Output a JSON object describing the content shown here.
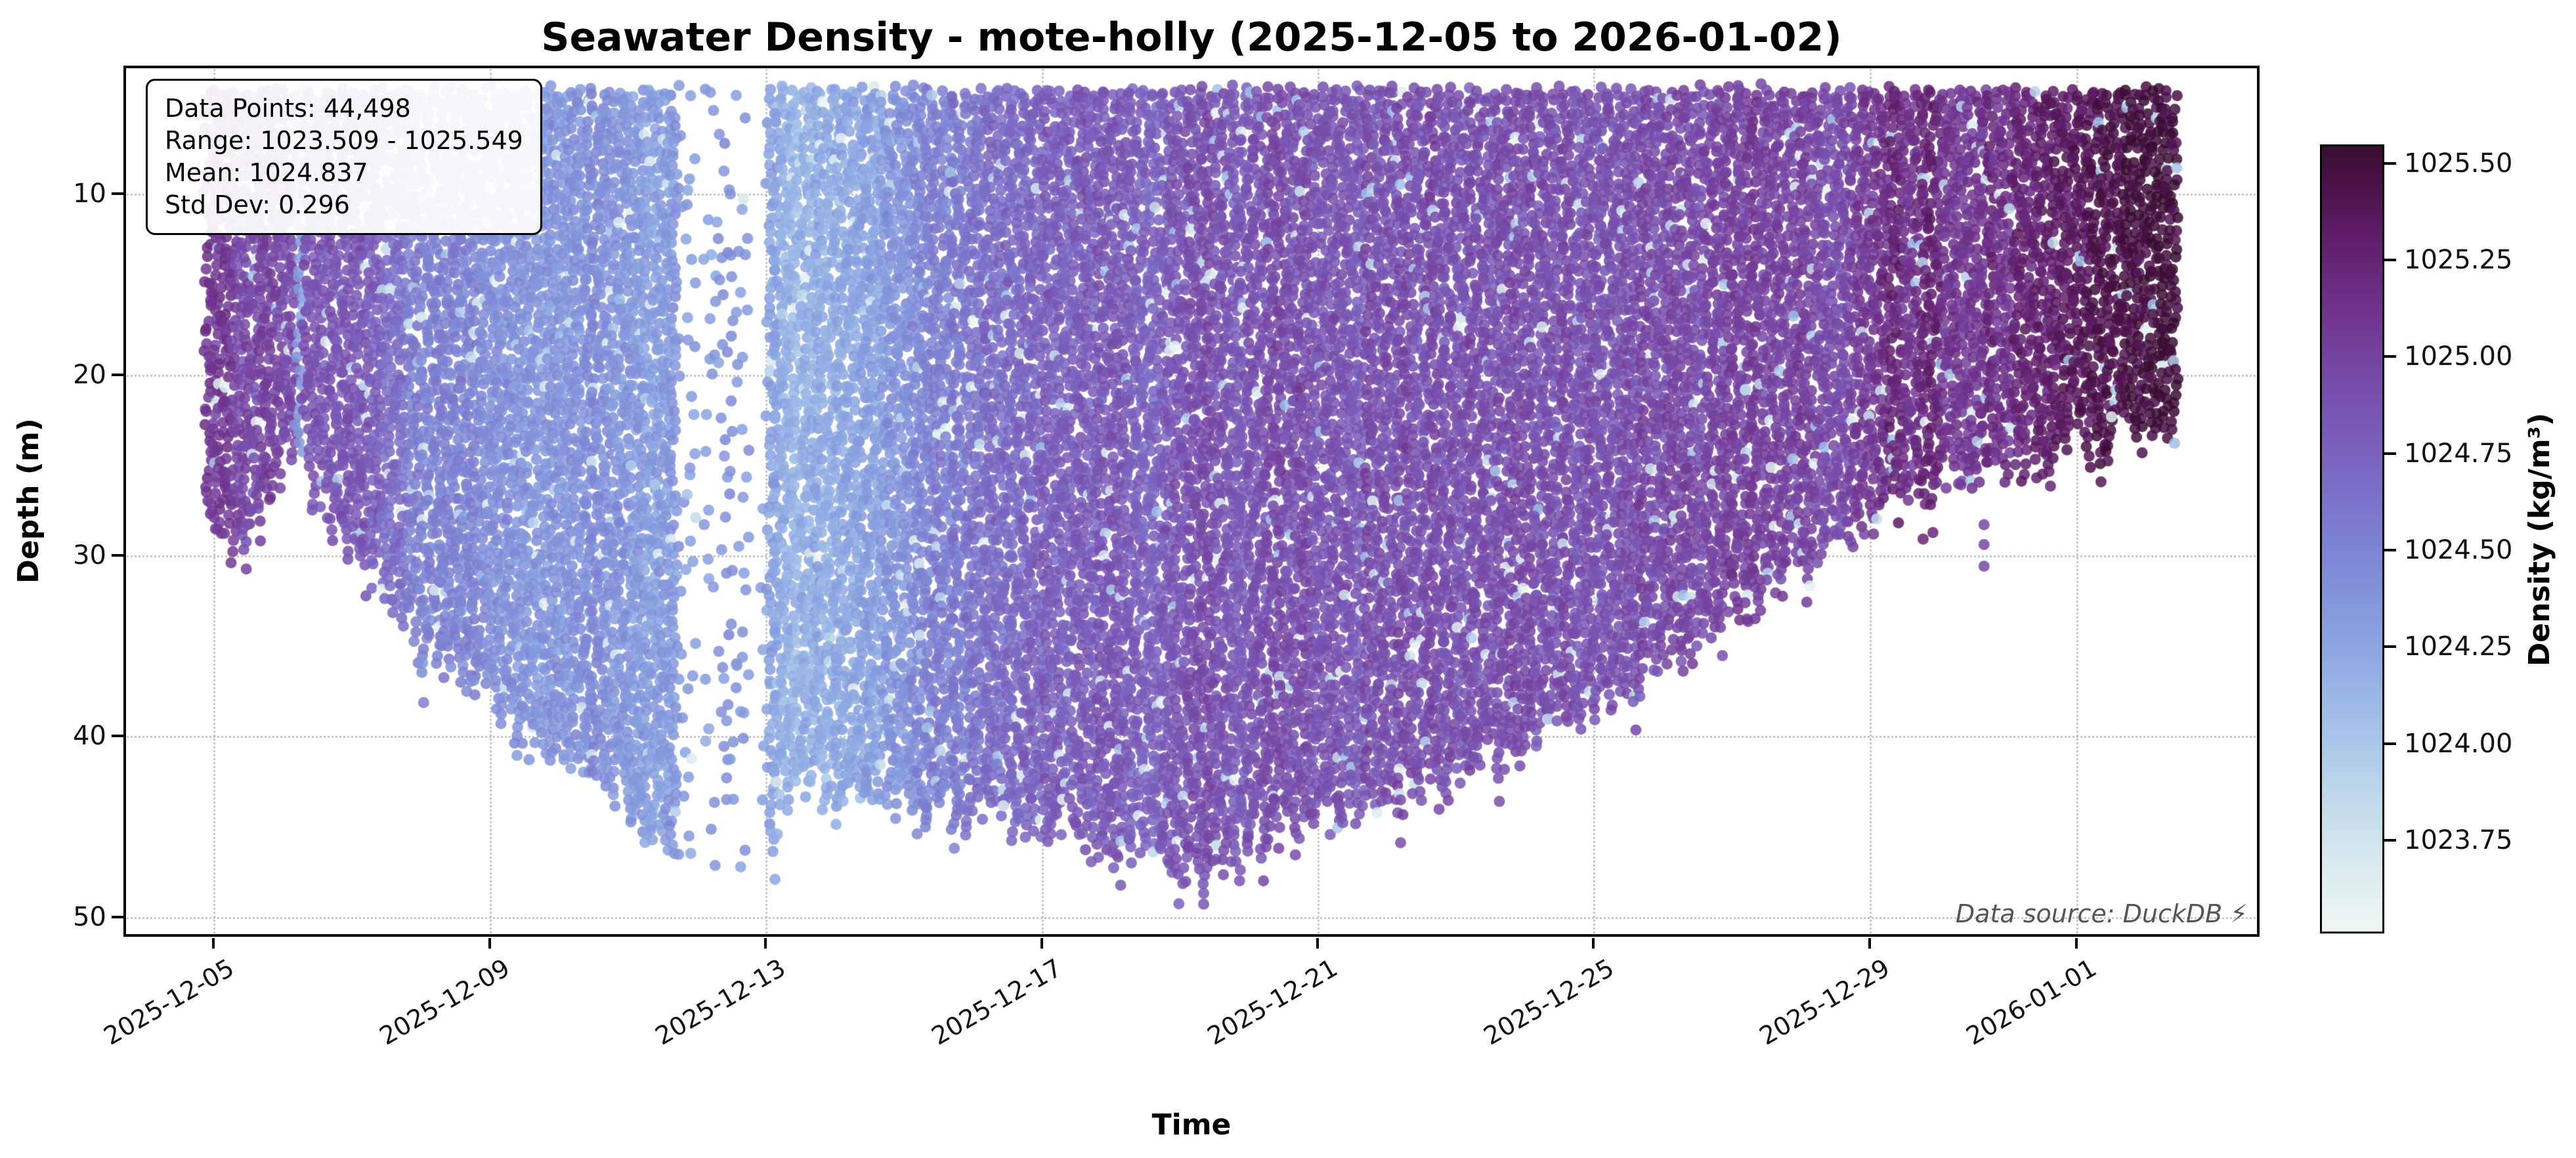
{
  "title": "Seawater Density - mote-holly (2025-12-05 to 2026-01-02)",
  "stats_box": {
    "lines": [
      "Data Points: 44,498",
      "Range: 1023.509 - 1025.549",
      "Mean: 1024.837",
      "Std Dev: 0.296"
    ]
  },
  "axes": {
    "x_label": "Time",
    "y_label": "Depth (m)",
    "x_ticks": [
      {
        "day": 0,
        "label": "2025-12-05"
      },
      {
        "day": 4,
        "label": "2025-12-09"
      },
      {
        "day": 8,
        "label": "2025-12-13"
      },
      {
        "day": 12,
        "label": "2025-12-17"
      },
      {
        "day": 16,
        "label": "2025-12-21"
      },
      {
        "day": 20,
        "label": "2025-12-25"
      },
      {
        "day": 24,
        "label": "2025-12-29"
      },
      {
        "day": 27,
        "label": "2026-01-01"
      }
    ],
    "y_ticks": [
      {
        "depth": 10,
        "label": "10"
      },
      {
        "depth": 20,
        "label": "20"
      },
      {
        "depth": 30,
        "label": "30"
      },
      {
        "depth": 40,
        "label": "40"
      },
      {
        "depth": 50,
        "label": "50"
      }
    ]
  },
  "colorbar": {
    "label": "Density (kg/m³)",
    "vmin": 1023.509,
    "vmax": 1025.549,
    "ticks": [
      {
        "value": 1025.5,
        "label": "1025.50"
      },
      {
        "value": 1025.25,
        "label": "1025.25"
      },
      {
        "value": 1025.0,
        "label": "1025.00"
      },
      {
        "value": 1024.75,
        "label": "1024.75"
      },
      {
        "value": 1024.5,
        "label": "1024.50"
      },
      {
        "value": 1024.25,
        "label": "1024.25"
      },
      {
        "value": 1024.0,
        "label": "1024.00"
      },
      {
        "value": 1023.75,
        "label": "1023.75"
      }
    ],
    "colormap": [
      {
        "t": 0.0,
        "color": "#eef7f4"
      },
      {
        "t": 0.08,
        "color": "#dcebee"
      },
      {
        "t": 0.18,
        "color": "#bcd6ea"
      },
      {
        "t": 0.28,
        "color": "#9dbde7"
      },
      {
        "t": 0.38,
        "color": "#87a1e0"
      },
      {
        "t": 0.48,
        "color": "#7d86d4"
      },
      {
        "t": 0.58,
        "color": "#7a6ac4"
      },
      {
        "t": 0.68,
        "color": "#7850ae"
      },
      {
        "t": 0.78,
        "color": "#713691"
      },
      {
        "t": 0.88,
        "color": "#601e6b"
      },
      {
        "t": 0.96,
        "color": "#471043"
      },
      {
        "t": 1.0,
        "color": "#390d31"
      }
    ]
  },
  "annotation": {
    "text": "Data source: DuckDB",
    "icon": "⚡"
  },
  "chart_data": {
    "type": "scatter",
    "title": "Seawater Density - mote-holly (2025-12-05 to 2026-01-02)",
    "xlabel": "Time",
    "ylabel": "Depth (m)",
    "color_label": "Density (kg/m³)",
    "x_unit": "days since 2025-12-05",
    "date_range": [
      "2025-12-05",
      "2026-01-02"
    ],
    "x_axis_span_days": [
      -1.31,
      29.64
    ],
    "depth_axis_range_m": [
      2.9,
      51.1
    ],
    "y_axis_inverted": true,
    "n_points": 44498,
    "density_min": 1023.509,
    "density_max": 1025.549,
    "density_mean": 1024.837,
    "density_std": 0.296,
    "top_depth_m": 4.3,
    "envelope_day_maxdepth": [
      [
        -0.1,
        27.5
      ],
      [
        0,
        28.5
      ],
      [
        0.4,
        29.5
      ],
      [
        0.7,
        28.0
      ],
      [
        1.1,
        23.5
      ],
      [
        1.4,
        25.5
      ],
      [
        2,
        30
      ],
      [
        2.5,
        32.5
      ],
      [
        3,
        34.5
      ],
      [
        3.5,
        36.5
      ],
      [
        4,
        38
      ],
      [
        4.5,
        39.5
      ],
      [
        5,
        41
      ],
      [
        5.5,
        42.5
      ],
      [
        6,
        44
      ],
      [
        6.5,
        45
      ],
      [
        7,
        46.5
      ],
      [
        7.5,
        48
      ],
      [
        8,
        47
      ],
      [
        8.3,
        43
      ],
      [
        9,
        43.5
      ],
      [
        10,
        44
      ],
      [
        11,
        44.5
      ],
      [
        12,
        45.5
      ],
      [
        13,
        46
      ],
      [
        14,
        47.5
      ],
      [
        14.6,
        47
      ],
      [
        15,
        46
      ],
      [
        16,
        44.5
      ],
      [
        17,
        43.5
      ],
      [
        18,
        42.5
      ],
      [
        19,
        40.5
      ],
      [
        20,
        38.5
      ],
      [
        21,
        36.5
      ],
      [
        22,
        33.5
      ],
      [
        23,
        30.5
      ],
      [
        23.5,
        29
      ],
      [
        24,
        28
      ],
      [
        25,
        26.5
      ],
      [
        26,
        25
      ],
      [
        27,
        24
      ],
      [
        28,
        23
      ],
      [
        28.45,
        22.5
      ]
    ],
    "density_timeline_day_value": [
      [
        -0.1,
        1025.1
      ],
      [
        0,
        1025.05
      ],
      [
        0.5,
        1025.0
      ],
      [
        1,
        1024.95
      ],
      [
        1.5,
        1024.9
      ],
      [
        2,
        1024.85
      ],
      [
        2.5,
        1024.7
      ],
      [
        3,
        1024.55
      ],
      [
        3.5,
        1024.5
      ],
      [
        4,
        1024.45
      ],
      [
        4.5,
        1024.4
      ],
      [
        5,
        1024.38
      ],
      [
        5.5,
        1024.42
      ],
      [
        6,
        1024.36
      ],
      [
        6.5,
        1024.32
      ],
      [
        7,
        1024.36
      ],
      [
        7.5,
        1024.42
      ],
      [
        8,
        1024.28
      ],
      [
        8.5,
        1024.2
      ],
      [
        9,
        1024.24
      ],
      [
        9.5,
        1024.3
      ],
      [
        10,
        1024.4
      ],
      [
        10.5,
        1024.52
      ],
      [
        11,
        1024.62
      ],
      [
        11.5,
        1024.72
      ],
      [
        12,
        1024.76
      ],
      [
        12.5,
        1024.8
      ],
      [
        13,
        1024.85
      ],
      [
        13.6,
        1024.72
      ],
      [
        14,
        1024.88
      ],
      [
        14.5,
        1024.9
      ],
      [
        15,
        1024.86
      ],
      [
        15.5,
        1024.92
      ],
      [
        16,
        1024.9
      ],
      [
        16.5,
        1024.86
      ],
      [
        17,
        1024.92
      ],
      [
        18,
        1024.9
      ],
      [
        19,
        1024.95
      ],
      [
        20,
        1024.9
      ],
      [
        21,
        1024.96
      ],
      [
        22,
        1025.0
      ],
      [
        23,
        1025.0
      ],
      [
        23.5,
        1024.95
      ],
      [
        24,
        1025.05
      ],
      [
        24.35,
        1025.3
      ],
      [
        24.6,
        1025.12
      ],
      [
        24.85,
        1025.28
      ],
      [
        25.1,
        1025.08
      ],
      [
        25.5,
        1025.12
      ],
      [
        26,
        1025.2
      ],
      [
        26.5,
        1025.28
      ],
      [
        27,
        1025.35
      ],
      [
        27.5,
        1025.45
      ],
      [
        28,
        1025.5
      ],
      [
        28.45,
        1025.53
      ]
    ],
    "sparse_intervals": [
      {
        "start": 6.7,
        "end": 8.05,
        "profile_keep": 0.6,
        "point_keep": 0.42
      }
    ],
    "light_streaks": [
      {
        "day": 1.28,
        "halfwidth": 0.06,
        "density": 1024.32
      }
    ],
    "outlier_points": [
      {
        "day": 25.66,
        "depths": [
          28.3,
          29.4,
          30.6
        ],
        "density": 1024.95
      },
      {
        "day": 14.35,
        "depths": [
          48.7,
          49.3
        ],
        "density": 1024.85
      }
    ],
    "point_style": {
      "radius_px": 8.5,
      "alpha": 0.85,
      "profile_spacing_days": 0.095,
      "vertical_spacing_m": 0.48
    }
  }
}
